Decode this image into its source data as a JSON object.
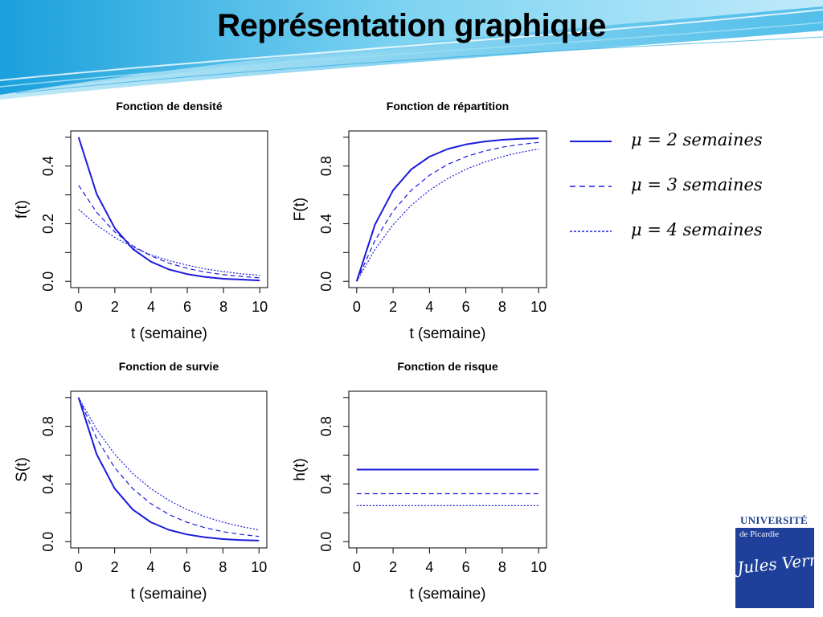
{
  "slide": {
    "title": "Représentation graphique"
  },
  "colors": {
    "series": "#1a1adc",
    "deco": "#38b6e6"
  },
  "legend": [
    {
      "label": "μ = 2 semaines",
      "style": "solid"
    },
    {
      "label": "μ = 3 semaines",
      "style": "dashed"
    },
    {
      "label": "μ = 4 semaines",
      "style": "dotted"
    }
  ],
  "logo": {
    "university": "UNIVERSITÉ",
    "subtitle": "de Picardie",
    "signature": "Jules Verne"
  },
  "chart_data": [
    {
      "type": "line",
      "title": "Fonction de densité",
      "xlabel": "t (semaine)",
      "ylabel": "f(t)",
      "xlim": [
        0,
        10
      ],
      "ylim": [
        0,
        0.5
      ],
      "xticks": [
        "0",
        "2",
        "4",
        "6",
        "8",
        "10"
      ],
      "yticks": [
        "0.0",
        "0.2",
        "0.4"
      ],
      "x": [
        0,
        1,
        2,
        3,
        4,
        5,
        6,
        7,
        8,
        9,
        10
      ],
      "series": [
        {
          "name": "μ = 2 semaines",
          "style": "solid",
          "values": [
            0.5,
            0.303,
            0.184,
            0.112,
            0.068,
            0.041,
            0.025,
            0.015,
            0.009,
            0.006,
            0.003
          ]
        },
        {
          "name": "μ = 3 semaines",
          "style": "dashed",
          "values": [
            0.333,
            0.239,
            0.171,
            0.123,
            0.088,
            0.063,
            0.045,
            0.032,
            0.023,
            0.017,
            0.012
          ]
        },
        {
          "name": "μ = 4 semaines",
          "style": "dotted",
          "values": [
            0.25,
            0.195,
            0.152,
            0.118,
            0.092,
            0.072,
            0.056,
            0.043,
            0.034,
            0.026,
            0.021
          ]
        }
      ]
    },
    {
      "type": "line",
      "title": "Fonction de répartition",
      "xlabel": "t (semaine)",
      "ylabel": "F(t)",
      "xlim": [
        0,
        10
      ],
      "ylim": [
        0,
        1
      ],
      "xticks": [
        "0",
        "2",
        "4",
        "6",
        "8",
        "10"
      ],
      "yticks": [
        "0.0",
        "0.4",
        "0.8"
      ],
      "x": [
        0,
        1,
        2,
        3,
        4,
        5,
        6,
        7,
        8,
        9,
        10
      ],
      "series": [
        {
          "name": "μ = 2 semaines",
          "style": "solid",
          "values": [
            0,
            0.393,
            0.632,
            0.777,
            0.865,
            0.918,
            0.95,
            0.97,
            0.982,
            0.989,
            0.993
          ]
        },
        {
          "name": "μ = 3 semaines",
          "style": "dashed",
          "values": [
            0,
            0.283,
            0.487,
            0.632,
            0.736,
            0.811,
            0.865,
            0.903,
            0.931,
            0.95,
            0.964
          ]
        },
        {
          "name": "μ = 4 semaines",
          "style": "dotted",
          "values": [
            0,
            0.221,
            0.393,
            0.528,
            0.632,
            0.713,
            0.777,
            0.826,
            0.865,
            0.895,
            0.918
          ]
        }
      ]
    },
    {
      "type": "line",
      "title": "Fonction de survie",
      "xlabel": "t (semaine)",
      "ylabel": "S(t)",
      "xlim": [
        0,
        10
      ],
      "ylim": [
        0,
        1
      ],
      "xticks": [
        "0",
        "2",
        "4",
        "6",
        "8",
        "10"
      ],
      "yticks": [
        "0.0",
        "0.4",
        "0.8"
      ],
      "x": [
        0,
        1,
        2,
        3,
        4,
        5,
        6,
        7,
        8,
        9,
        10
      ],
      "series": [
        {
          "name": "μ = 2 semaines",
          "style": "solid",
          "values": [
            1,
            0.607,
            0.368,
            0.223,
            0.135,
            0.082,
            0.05,
            0.03,
            0.018,
            0.011,
            0.007
          ]
        },
        {
          "name": "μ = 3 semaines",
          "style": "dashed",
          "values": [
            1,
            0.717,
            0.513,
            0.368,
            0.264,
            0.189,
            0.135,
            0.097,
            0.069,
            0.05,
            0.036
          ]
        },
        {
          "name": "μ = 4 semaines",
          "style": "dotted",
          "values": [
            1,
            0.779,
            0.607,
            0.472,
            0.368,
            0.287,
            0.223,
            0.174,
            0.135,
            0.105,
            0.082
          ]
        }
      ]
    },
    {
      "type": "line",
      "title": "Fonction de risque",
      "xlabel": "t (semaine)",
      "ylabel": "h(t)",
      "xlim": [
        0,
        10
      ],
      "ylim": [
        0,
        1
      ],
      "xticks": [
        "0",
        "2",
        "4",
        "6",
        "8",
        "10"
      ],
      "yticks": [
        "0.0",
        "0.4",
        "0.8"
      ],
      "x": [
        0,
        10
      ],
      "series": [
        {
          "name": "μ = 2 semaines",
          "style": "solid",
          "values": [
            0.5,
            0.5
          ]
        },
        {
          "name": "μ = 3 semaines",
          "style": "dashed",
          "values": [
            0.333,
            0.333
          ]
        },
        {
          "name": "μ = 4 semaines",
          "style": "dotted",
          "values": [
            0.25,
            0.25
          ]
        }
      ]
    }
  ]
}
